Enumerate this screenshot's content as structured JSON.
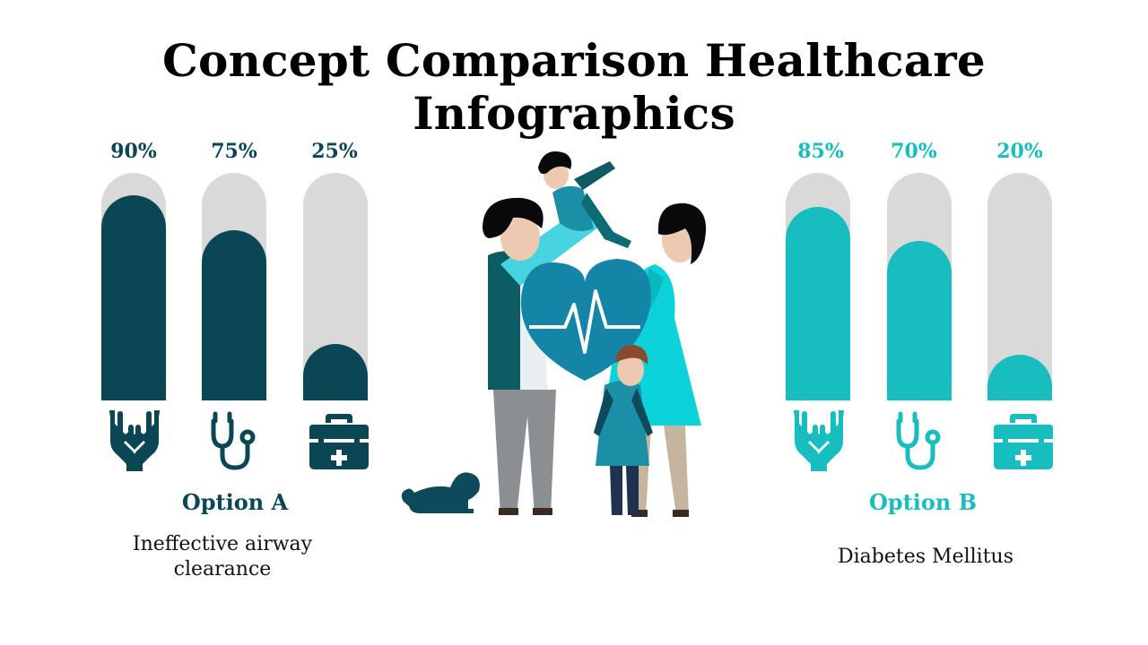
{
  "title": "Concept Comparison Healthcare Infographics",
  "colors": {
    "option_a": "#0b4654",
    "option_b": "#17bdbf",
    "track": "#d9d9d9"
  },
  "icons": [
    "hands-heart-icon",
    "stethoscope-icon",
    "medical-kit-icon"
  ],
  "chart_data": [
    {
      "type": "bar",
      "series": [
        {
          "name": "Option A",
          "values": [
            90,
            75,
            25
          ]
        }
      ],
      "value_labels": [
        "90%",
        "75%",
        "25%"
      ],
      "description": "Ineffective airway clearance",
      "ylim": [
        0,
        100
      ]
    },
    {
      "type": "bar",
      "series": [
        {
          "name": "Option B",
          "values": [
            85,
            70,
            20
          ]
        }
      ],
      "value_labels": [
        "85%",
        "70%",
        "20%"
      ],
      "description": "Diabetes Mellitus",
      "ylim": [
        0,
        100
      ]
    }
  ]
}
